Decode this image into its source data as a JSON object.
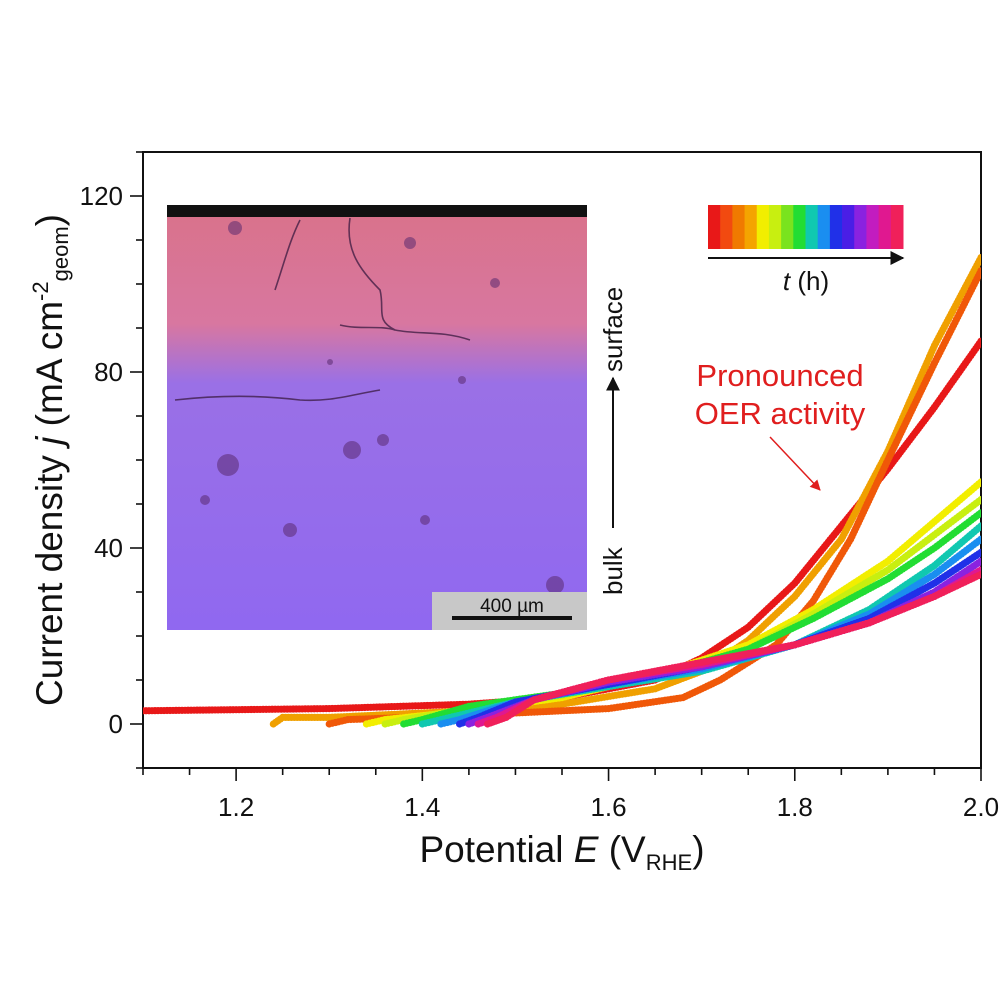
{
  "chart_data": {
    "type": "scatter",
    "title": "",
    "xlabel": {
      "main": "Potential ",
      "var": "E",
      "open": " (V",
      "sub": "RHE",
      "close": ")"
    },
    "ylabel": {
      "main": "Current density ",
      "var": "j",
      "open": " (mA cm",
      "sup": "-2",
      "sub": "geom",
      "close": ")"
    },
    "xlim": [
      1.1,
      2.0
    ],
    "ylim": [
      -10,
      130
    ],
    "xticks": [
      1.2,
      1.4,
      1.6,
      1.8,
      2.0
    ],
    "xtick_labels": [
      "1.2",
      "1.4",
      "1.6",
      "1.8",
      "2.0"
    ],
    "yticks": [
      0,
      40,
      80,
      120
    ],
    "ytick_labels": [
      "0",
      "40",
      "80",
      "120"
    ],
    "grid": false,
    "series": [
      {
        "color": "#e81818",
        "points": [
          [
            1.1,
            3
          ],
          [
            1.3,
            3.5
          ],
          [
            1.45,
            4.5
          ],
          [
            1.55,
            6
          ],
          [
            1.65,
            10
          ],
          [
            1.7,
            15
          ],
          [
            1.75,
            22
          ],
          [
            1.8,
            32
          ],
          [
            1.85,
            45
          ],
          [
            1.9,
            58
          ],
          [
            1.95,
            72
          ],
          [
            2.0,
            87
          ]
        ]
      },
      {
        "color": "#f0a000",
        "points": [
          [
            1.24,
            0
          ],
          [
            1.25,
            1.5
          ],
          [
            1.3,
            1.5
          ],
          [
            1.45,
            3
          ],
          [
            1.55,
            4.5
          ],
          [
            1.65,
            8
          ],
          [
            1.7,
            12
          ],
          [
            1.75,
            19
          ],
          [
            1.8,
            29
          ],
          [
            1.85,
            42
          ],
          [
            1.9,
            62
          ],
          [
            1.95,
            86
          ],
          [
            2.0,
            106
          ]
        ]
      },
      {
        "color": "#f05808",
        "points": [
          [
            1.3,
            0
          ],
          [
            1.32,
            1
          ],
          [
            1.45,
            2
          ],
          [
            1.6,
            3.5
          ],
          [
            1.68,
            6
          ],
          [
            1.72,
            10
          ],
          [
            1.78,
            18
          ],
          [
            1.82,
            28
          ],
          [
            1.86,
            42
          ],
          [
            1.9,
            60
          ],
          [
            1.95,
            82
          ],
          [
            2.0,
            103
          ]
        ]
      },
      {
        "color": "#f2ee00",
        "points": [
          [
            1.34,
            0
          ],
          [
            1.36,
            1
          ],
          [
            1.45,
            3
          ],
          [
            1.55,
            6
          ],
          [
            1.65,
            11
          ],
          [
            1.75,
            18
          ],
          [
            1.82,
            26
          ],
          [
            1.9,
            37
          ],
          [
            1.95,
            46
          ],
          [
            2.0,
            55
          ]
        ]
      },
      {
        "color": "#c8ef10",
        "points": [
          [
            1.36,
            0
          ],
          [
            1.38,
            1
          ],
          [
            1.45,
            3.5
          ],
          [
            1.55,
            6.5
          ],
          [
            1.65,
            11
          ],
          [
            1.75,
            17
          ],
          [
            1.82,
            25
          ],
          [
            1.9,
            35
          ],
          [
            1.95,
            43
          ],
          [
            2.0,
            51
          ]
        ]
      },
      {
        "color": "#22dd33",
        "points": [
          [
            1.38,
            0
          ],
          [
            1.4,
            1
          ],
          [
            1.45,
            4
          ],
          [
            1.55,
            7
          ],
          [
            1.65,
            11
          ],
          [
            1.75,
            17
          ],
          [
            1.82,
            24
          ],
          [
            1.9,
            33
          ],
          [
            1.95,
            40
          ],
          [
            2.0,
            48
          ]
        ]
      },
      {
        "color": "#10c8b0",
        "points": [
          [
            1.4,
            0
          ],
          [
            1.42,
            1
          ],
          [
            1.5,
            5
          ],
          [
            1.6,
            8.5
          ],
          [
            1.7,
            12
          ],
          [
            1.8,
            18
          ],
          [
            1.88,
            26
          ],
          [
            1.95,
            36
          ],
          [
            2.0,
            45
          ]
        ]
      },
      {
        "color": "#1a8ef0",
        "points": [
          [
            1.42,
            0
          ],
          [
            1.44,
            1
          ],
          [
            1.5,
            5
          ],
          [
            1.6,
            9
          ],
          [
            1.7,
            12.5
          ],
          [
            1.8,
            18
          ],
          [
            1.88,
            25
          ],
          [
            1.95,
            34
          ],
          [
            2.0,
            42
          ]
        ]
      },
      {
        "color": "#2030e8",
        "points": [
          [
            1.44,
            0
          ],
          [
            1.46,
            1.5
          ],
          [
            1.5,
            5
          ],
          [
            1.6,
            9
          ],
          [
            1.7,
            13
          ],
          [
            1.8,
            18
          ],
          [
            1.88,
            24
          ],
          [
            1.95,
            32
          ],
          [
            2.0,
            39
          ]
        ]
      },
      {
        "color": "#8a22e0",
        "points": [
          [
            1.45,
            0
          ],
          [
            1.47,
            1.5
          ],
          [
            1.52,
            5.5
          ],
          [
            1.6,
            9.5
          ],
          [
            1.7,
            13
          ],
          [
            1.8,
            18
          ],
          [
            1.88,
            23
          ],
          [
            1.95,
            30
          ],
          [
            2.0,
            37
          ]
        ]
      },
      {
        "color": "#e01890",
        "points": [
          [
            1.46,
            0
          ],
          [
            1.48,
            1.5
          ],
          [
            1.52,
            5.5
          ],
          [
            1.6,
            10
          ],
          [
            1.7,
            13.5
          ],
          [
            1.8,
            18
          ],
          [
            1.88,
            23
          ],
          [
            1.95,
            29
          ],
          [
            2.0,
            35
          ]
        ]
      },
      {
        "color": "#f0205a",
        "points": [
          [
            1.47,
            0
          ],
          [
            1.49,
            1.5
          ],
          [
            1.52,
            5.5
          ],
          [
            1.6,
            10
          ],
          [
            1.7,
            14
          ],
          [
            1.8,
            18
          ],
          [
            1.88,
            23
          ],
          [
            1.95,
            29
          ],
          [
            2.0,
            34
          ]
        ]
      }
    ],
    "annotation": {
      "lines": [
        "Pronounced",
        "OER activity"
      ],
      "color": "#e01e1e"
    },
    "time_legend": {
      "colors": [
        "#e81818",
        "#f24a10",
        "#f07a00",
        "#f4a400",
        "#f2ee00",
        "#c8ef10",
        "#7ae31e",
        "#22dd33",
        "#10c8b0",
        "#1a8ef0",
        "#2030e8",
        "#4a1ee6",
        "#8a22e0",
        "#c21cc0",
        "#e01890",
        "#f0205a"
      ],
      "label_var": "t",
      "label_unit": " (h)"
    },
    "inset": {
      "scale_bar_label": "400 µm",
      "axis_top_label": "surface",
      "axis_bottom_label": "bulk"
    }
  }
}
